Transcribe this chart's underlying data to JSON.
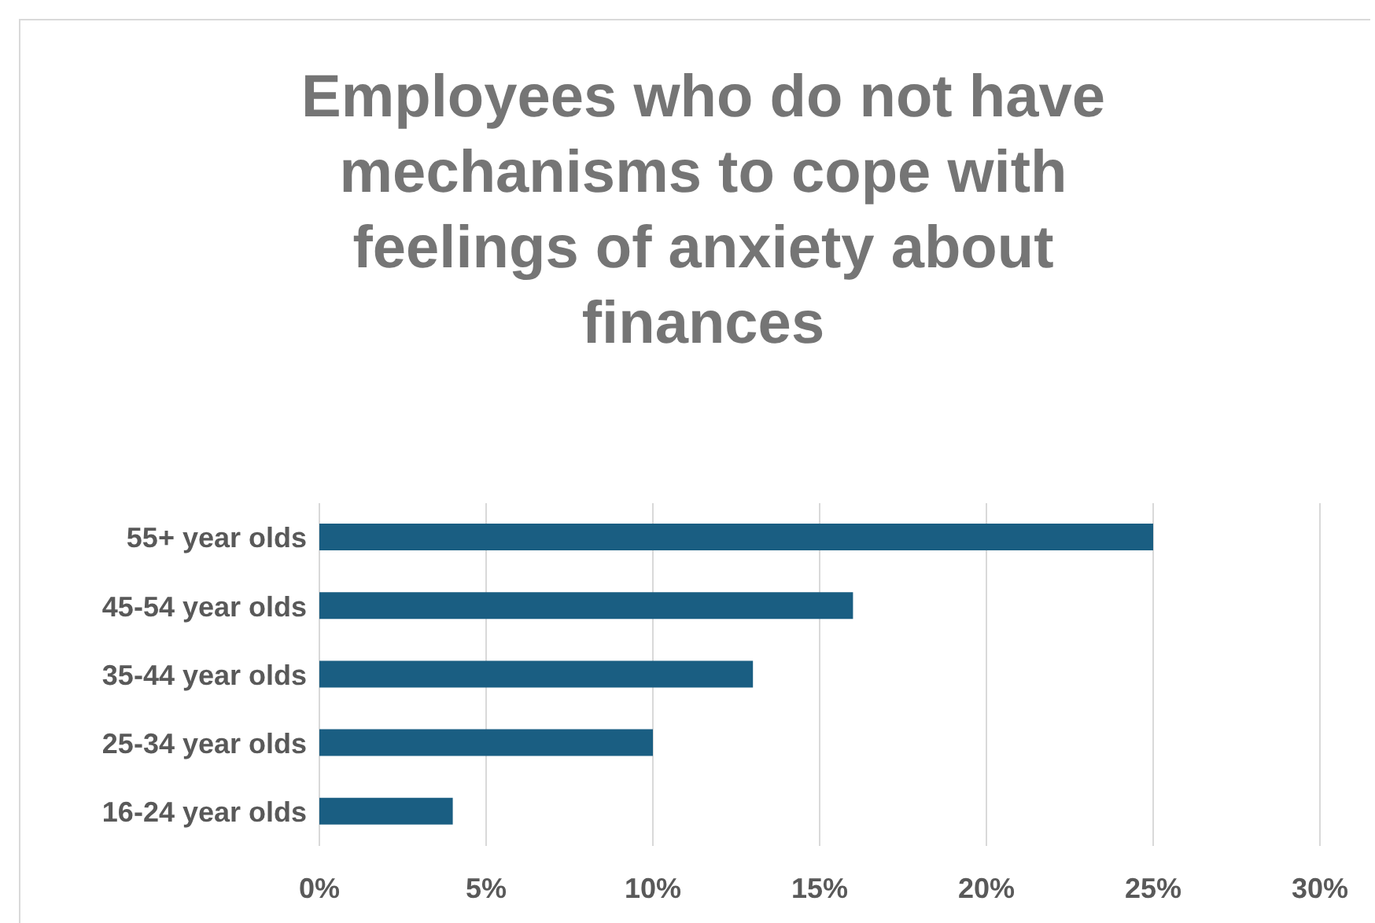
{
  "chart_data": {
    "type": "bar",
    "orientation": "horizontal",
    "title": "Employees who do not have mechanisms to cope with feelings of anxiety about finances",
    "categories": [
      "55+ year olds",
      "45-54 year olds",
      "35-44 year olds",
      "25-34 year olds",
      "16-24 year olds"
    ],
    "values": [
      25,
      16,
      13,
      10,
      4
    ],
    "color": "#1a5e82",
    "xlim": [
      0,
      30
    ],
    "xticks": [
      {
        "value": 0,
        "label": "0%"
      },
      {
        "value": 5,
        "label": "5%"
      },
      {
        "value": 10,
        "label": "10%"
      },
      {
        "value": 15,
        "label": "15%"
      },
      {
        "value": 20,
        "label": "20%"
      },
      {
        "value": 25,
        "label": "25%"
      },
      {
        "value": 30,
        "label": "30%"
      }
    ],
    "grid": "x"
  }
}
